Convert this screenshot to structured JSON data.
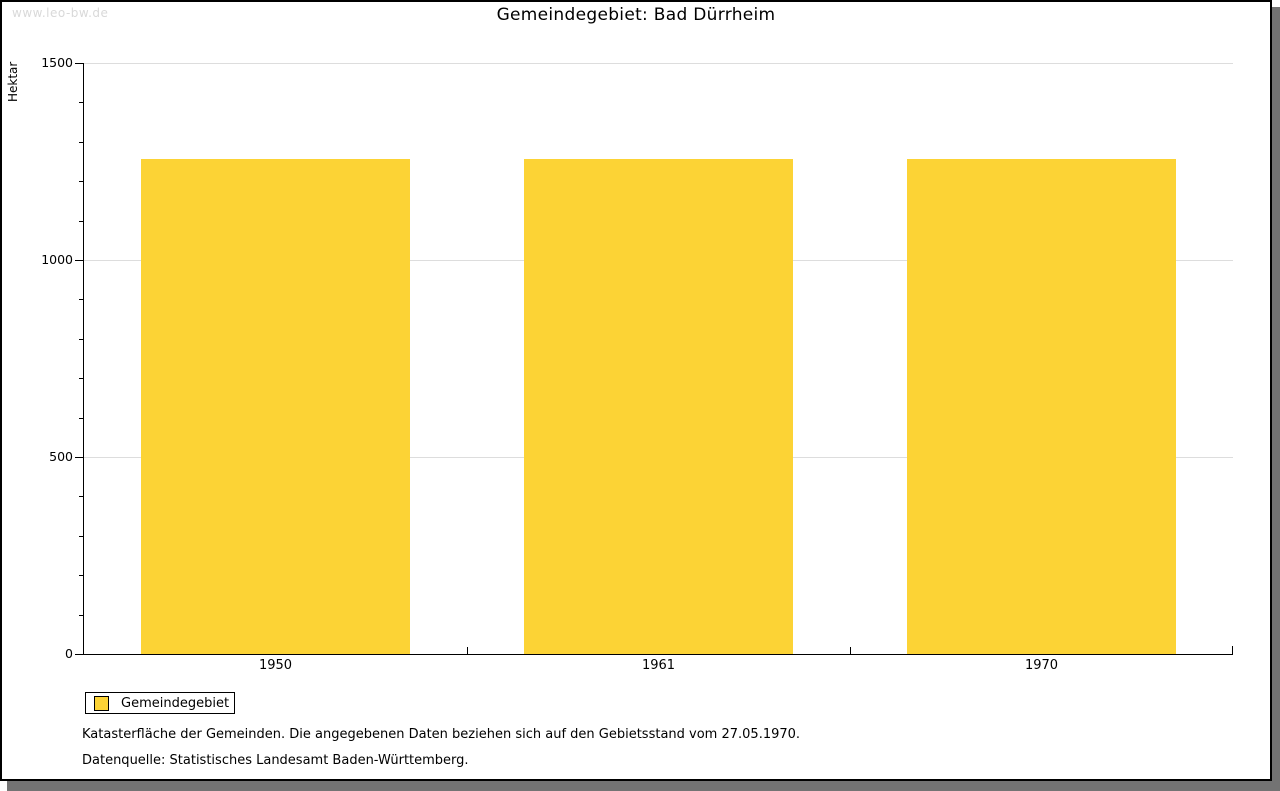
{
  "watermark": "www.leo-bw.de",
  "title": "Gemeindegebiet: Bad Dürrheim",
  "chart_data": {
    "type": "bar",
    "title": "Gemeindegebiet: Bad Dürrheim",
    "categories": [
      "1950",
      "1961",
      "1970"
    ],
    "series": [
      {
        "name": "Gemeindegebiet",
        "values": [
          1257,
          1257,
          1257
        ]
      }
    ],
    "xlabel": "",
    "ylabel": "Hektar",
    "ylim": [
      0,
      1500
    ],
    "yticks": [
      0,
      500,
      1000,
      1500
    ],
    "minor_tick_interval": 100,
    "grid": "horizontal major gridlines",
    "legend_position": "below plot, bottom-left"
  },
  "legend": {
    "items": [
      {
        "label": "Gemeindegebiet",
        "color": "#FCD335"
      }
    ]
  },
  "footnotes": [
    "Katasterfläche der Gemeinden. Die angegebenen Daten beziehen sich auf den Gebietsstand vom 27.05.1970.",
    "Datenquelle: Statistisches Landesamt Baden-Württemberg."
  ],
  "colors": {
    "bar": "#FCD335",
    "grid": "#DDDDDD",
    "axis": "#000000",
    "watermark": "#D9D9D9",
    "frame_shadow": "#737373",
    "text": "#000000"
  }
}
